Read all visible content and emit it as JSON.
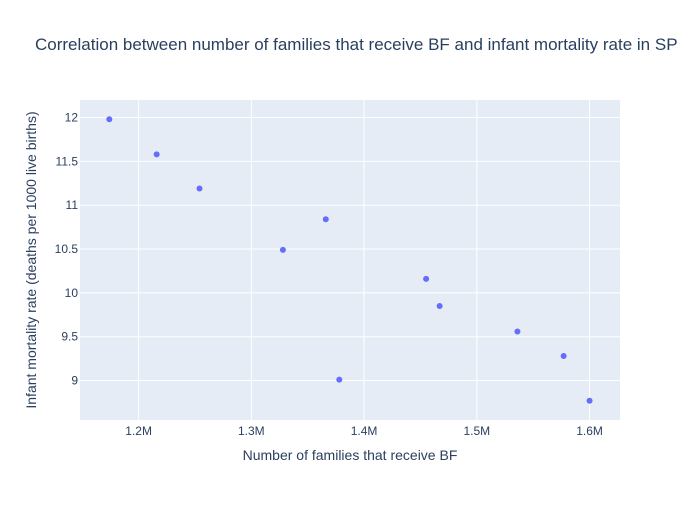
{
  "chart_data": {
    "type": "scatter",
    "title": "Correlation between number of families that receive BF and infant mortality rate in SP",
    "xlabel": "Number of families that receive BF",
    "ylabel": "Infant mortality rate (deaths per 1000 live births)",
    "xlim": [
      1148000,
      1627000
    ],
    "ylim": [
      8.55,
      12.2
    ],
    "x_ticks": [
      {
        "value": 1200000,
        "label": "1.2M"
      },
      {
        "value": 1300000,
        "label": "1.3M"
      },
      {
        "value": 1400000,
        "label": "1.4M"
      },
      {
        "value": 1500000,
        "label": "1.5M"
      },
      {
        "value": 1600000,
        "label": "1.6M"
      }
    ],
    "y_ticks": [
      {
        "value": 9,
        "label": "9"
      },
      {
        "value": 9.5,
        "label": "9.5"
      },
      {
        "value": 10,
        "label": "10"
      },
      {
        "value": 10.5,
        "label": "10.5"
      },
      {
        "value": 11,
        "label": "11"
      },
      {
        "value": 11.5,
        "label": "11.5"
      },
      {
        "value": 12,
        "label": "12"
      }
    ],
    "grid": true,
    "points": [
      {
        "x": 1174000,
        "y": 11.98
      },
      {
        "x": 1216000,
        "y": 11.58
      },
      {
        "x": 1254000,
        "y": 11.19
      },
      {
        "x": 1328000,
        "y": 10.49
      },
      {
        "x": 1366000,
        "y": 10.84
      },
      {
        "x": 1378000,
        "y": 9.01
      },
      {
        "x": 1455000,
        "y": 10.16
      },
      {
        "x": 1467000,
        "y": 9.85
      },
      {
        "x": 1536000,
        "y": 9.56
      },
      {
        "x": 1577000,
        "y": 9.28
      },
      {
        "x": 1600000,
        "y": 8.77
      }
    ],
    "colors": {
      "marker": "#636efa",
      "plot_bg": "#e5ecf6",
      "grid": "#ffffff",
      "text": "#2a3f5f"
    }
  }
}
